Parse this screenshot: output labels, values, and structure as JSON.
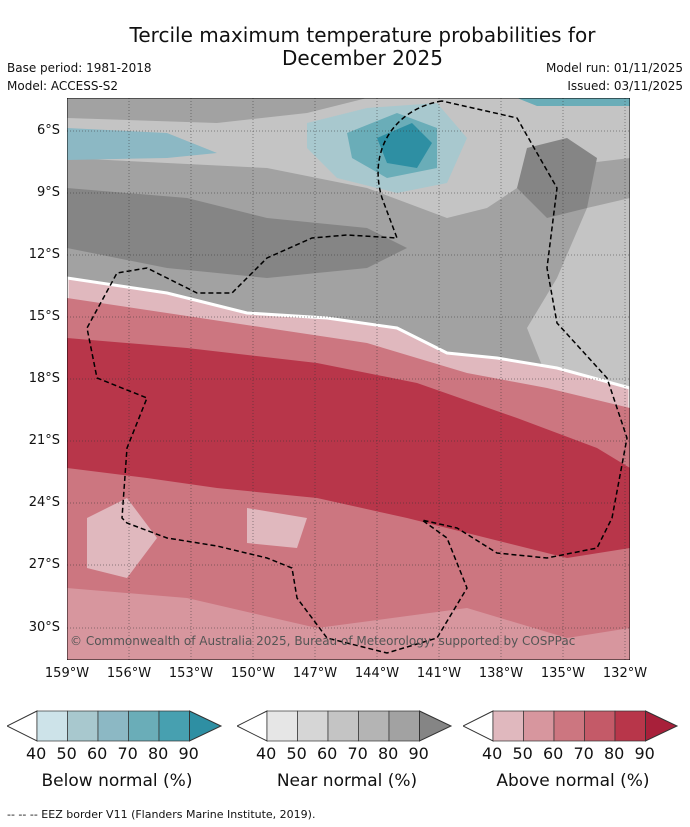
{
  "title_line1": "Tercile maximum temperature probabilities for",
  "title_line2": "December 2025",
  "base_period": "Base period: 1981-2018",
  "model": "Model: ACCESS-S2",
  "model_run": "Model run: 01/11/2025",
  "issued": "Issued: 03/11/2025",
  "copyright": "© Commonwealth of Australia 2025, Bureau of Meteorology, supported by COSPPac",
  "lat_labels": [
    "6°S",
    "9°S",
    "12°S",
    "15°S",
    "18°S",
    "21°S",
    "24°S",
    "27°S",
    "30°S"
  ],
  "lon_labels": [
    "159°W",
    "156°W",
    "153°W",
    "150°W",
    "147°W",
    "144°W",
    "141°W",
    "138°W",
    "135°W",
    "132°W"
  ],
  "legend": [
    {
      "title": "Below normal (%)",
      "colors": [
        "#ffffff",
        "#cde3e9",
        "#a8c8ce",
        "#8cb8c4",
        "#6aadb8",
        "#47a0b0",
        "#2e8fa3"
      ]
    },
    {
      "title": "Near normal (%)",
      "colors": [
        "#ffffff",
        "#e6e6e6",
        "#d6d6d6",
        "#c4c4c4",
        "#b4b4b4",
        "#a2a2a2",
        "#858585"
      ]
    },
    {
      "title": "Above normal (%)",
      "colors": [
        "#ffffff",
        "#e0b8be",
        "#d7969e",
        "#cc7680",
        "#c45a68",
        "#b8364a",
        "#a8203a"
      ]
    }
  ],
  "legend_ticks": [
    "40",
    "50",
    "60",
    "70",
    "80",
    "90"
  ],
  "footnote": "--  --  -- EEZ border V11 (Flanders Marine Institute, 2019)."
}
